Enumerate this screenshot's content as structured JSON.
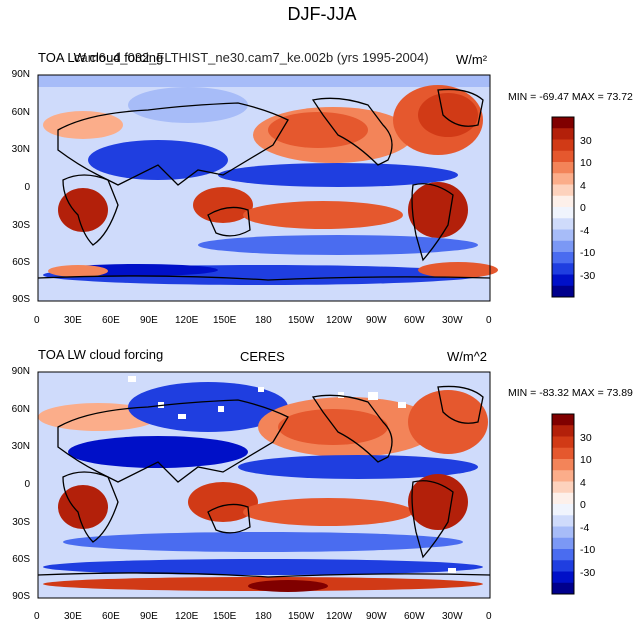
{
  "title": "DJF-JJA",
  "colors": [
    "#00008c",
    "#0010c8",
    "#1f3ee0",
    "#4a6cf0",
    "#7b98f5",
    "#a7bcf8",
    "#cfdbfb",
    "#f0f4fd",
    "#fdf0ea",
    "#fdd2bd",
    "#fbad8a",
    "#f38459",
    "#e5582e",
    "#d13a16",
    "#b3200a",
    "#800000"
  ],
  "colorbar_labels": [
    "30",
    "10",
    "4",
    "0",
    "-4",
    "-10",
    "-30"
  ],
  "lat_labels": [
    "90N",
    "60N",
    "30N",
    "0",
    "30S",
    "60S",
    "90S"
  ],
  "lon_labels": [
    "0",
    "30E",
    "60E",
    "90E",
    "120E",
    "150E",
    "180",
    "150W",
    "120W",
    "90W",
    "60W",
    "30W",
    "0"
  ],
  "panels": [
    {
      "left_title": "TOA LW cloud forcing",
      "center_title": "cam6_4_032_FLTHIST_ne30.cam7_ke.002b (yrs 1995-2004)",
      "units": "W/m²",
      "stats": "MIN = -69.47 MAX =  73.72"
    },
    {
      "left_title": "TOA LW cloud forcing",
      "center_title": "CERES",
      "units": "W/m^2",
      "stats": "MIN = -83.32 MAX =  73.89"
    }
  ]
}
